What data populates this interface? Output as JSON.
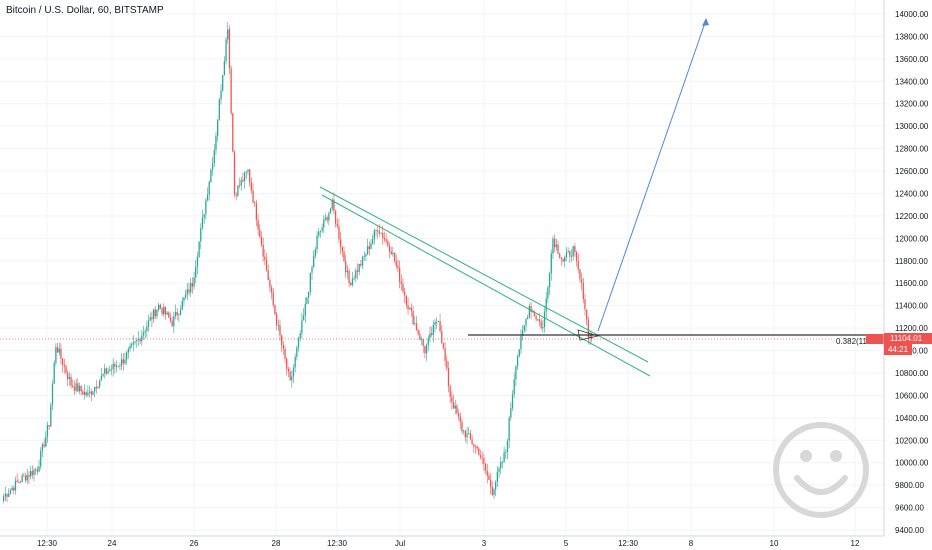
{
  "header": {
    "title": "Bitcoin / U.S. Dollar, 60, BITSTAMP"
  },
  "colors": {
    "up": "#26a69a",
    "down": "#ef5350",
    "trend": "#2ab57d",
    "arrow": "#4f8ad9",
    "price_tag": "#ef5350",
    "support": "#333333",
    "grid": "#f0f3fa",
    "smiley": "#d8d8d8"
  },
  "price_axis": {
    "ticks": [
      "14000.00",
      "13800.00",
      "13600.00",
      "13400.00",
      "13200.00",
      "13000.00",
      "12800.00",
      "12600.00",
      "12400.00",
      "12200.00",
      "12000.00",
      "11800.00",
      "11600.00",
      "11400.00",
      "11200.00",
      "11000.00",
      "10800.00",
      "10600.00",
      "10400.00",
      "10200.00",
      "10000.00",
      "9800.00",
      "9600.00",
      "9400.00"
    ],
    "current_price": "11104.01",
    "countdown": "44:21"
  },
  "time_axis": {
    "ticks": [
      "12:30",
      "24",
      "26",
      "28",
      "12:30",
      "Jul",
      "3",
      "5",
      "12:30",
      "8",
      "10",
      "12"
    ]
  },
  "annotations": {
    "fib_label": "0.382(11"
  },
  "icons": {
    "watermark": "smiley-face-icon"
  },
  "chart_data": {
    "type": "candlestick",
    "title": "Bitcoin / U.S. Dollar, 60, BITSTAMP",
    "ylim": [
      9380,
      14080
    ],
    "anchors": [
      [
        0,
        9700
      ],
      [
        10,
        9850
      ],
      [
        20,
        9950
      ],
      [
        27,
        10350
      ],
      [
        31,
        11050
      ],
      [
        40,
        10700
      ],
      [
        50,
        10600
      ],
      [
        60,
        10800
      ],
      [
        70,
        10900
      ],
      [
        80,
        11100
      ],
      [
        92,
        11400
      ],
      [
        100,
        11250
      ],
      [
        112,
        11600
      ],
      [
        125,
        12800
      ],
      [
        133,
        13900
      ],
      [
        137,
        12400
      ],
      [
        145,
        12600
      ],
      [
        160,
        11400
      ],
      [
        170,
        10700
      ],
      [
        178,
        11300
      ],
      [
        186,
        12000
      ],
      [
        195,
        12300
      ],
      [
        205,
        11600
      ],
      [
        213,
        11800
      ],
      [
        222,
        12100
      ],
      [
        230,
        11900
      ],
      [
        240,
        11400
      ],
      [
        250,
        11000
      ],
      [
        258,
        11300
      ],
      [
        265,
        10600
      ],
      [
        272,
        10300
      ],
      [
        282,
        10100
      ],
      [
        290,
        9750
      ],
      [
        298,
        10100
      ],
      [
        304,
        10900
      ],
      [
        312,
        11400
      ],
      [
        320,
        11200
      ],
      [
        326,
        12000
      ],
      [
        332,
        11800
      ],
      [
        338,
        11900
      ],
      [
        344,
        11500
      ],
      [
        347,
        11150
      ],
      [
        349,
        11104
      ]
    ]
  }
}
